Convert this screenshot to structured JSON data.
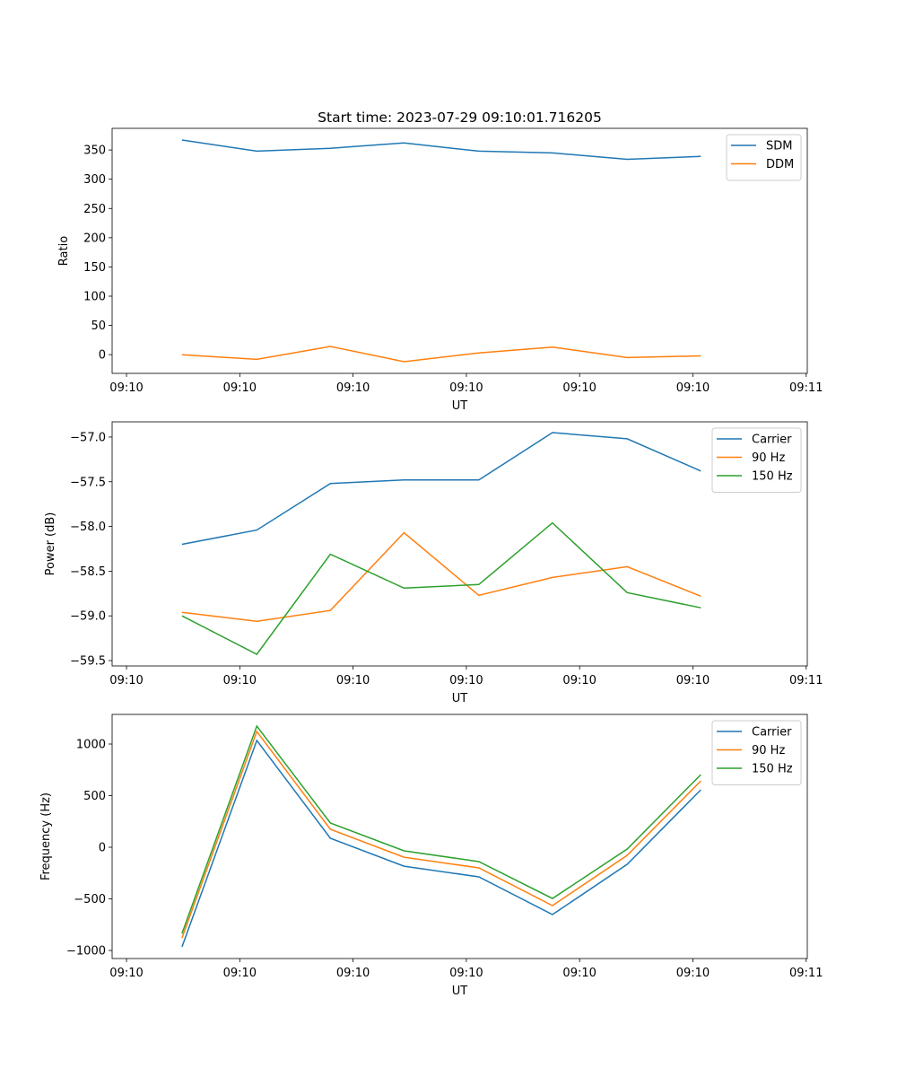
{
  "colors": {
    "blue": "#1f77b4",
    "orange": "#ff7f0e",
    "green": "#2ca02c"
  },
  "chart_data": [
    {
      "type": "line",
      "title": "Start time: 2023-07-29 09:10:01.716205",
      "xlabel": "UT",
      "ylabel": "Ratio",
      "x": [
        4.9,
        11.5,
        18.0,
        24.5,
        31.1,
        37.6,
        44.2,
        50.7
      ],
      "xlim": [
        -1.27,
        60.1
      ],
      "xticks": [
        0,
        10,
        20,
        30,
        40,
        50,
        60
      ],
      "xtick_labels": [
        "09:10",
        "09:10",
        "09:10",
        "09:10",
        "09:10",
        "09:10",
        "09:11"
      ],
      "ylim": [
        -32,
        387
      ],
      "yticks": [
        0,
        50,
        100,
        150,
        200,
        250,
        300,
        350
      ],
      "ytick_labels": [
        "0",
        "50",
        "100",
        "150",
        "200",
        "250",
        "300",
        "350"
      ],
      "legend": "top-right",
      "series": [
        {
          "name": "SDM",
          "color": "#1f77b4",
          "values": [
            367,
            348,
            353,
            362,
            348,
            345,
            334,
            339
          ]
        },
        {
          "name": "DDM",
          "color": "#ff7f0e",
          "values": [
            0,
            -8,
            14,
            -12,
            3,
            13,
            -5,
            -2
          ]
        }
      ]
    },
    {
      "type": "line",
      "title": "",
      "xlabel": "UT",
      "ylabel": "Power (dB)",
      "x": [
        4.9,
        11.5,
        18.0,
        24.5,
        31.1,
        37.6,
        44.2,
        50.7
      ],
      "xlim": [
        -1.27,
        60.1
      ],
      "xticks": [
        0,
        10,
        20,
        30,
        40,
        50,
        60
      ],
      "xtick_labels": [
        "09:10",
        "09:10",
        "09:10",
        "09:10",
        "09:10",
        "09:10",
        "09:11"
      ],
      "ylim": [
        -59.56,
        -56.83
      ],
      "yticks": [
        -59.5,
        -59.0,
        -58.5,
        -58.0,
        -57.5,
        -57.0
      ],
      "ytick_labels": [
        "−59.5",
        "−59.0",
        "−58.5",
        "−58.0",
        "−57.5",
        "−57.0"
      ],
      "legend": "top-right",
      "series": [
        {
          "name": "Carrier",
          "color": "#1f77b4",
          "values": [
            -58.2,
            -58.04,
            -57.52,
            -57.48,
            -57.48,
            -56.95,
            -57.02,
            -57.38
          ]
        },
        {
          "name": "90 Hz",
          "color": "#ff7f0e",
          "values": [
            -58.96,
            -59.06,
            -58.94,
            -58.07,
            -58.77,
            -58.57,
            -58.45,
            -58.78
          ]
        },
        {
          "name": "150 Hz",
          "color": "#2ca02c",
          "values": [
            -59.0,
            -59.43,
            -58.31,
            -58.69,
            -58.65,
            -57.96,
            -58.74,
            -58.91
          ]
        }
      ]
    },
    {
      "type": "line",
      "title": "",
      "xlabel": "UT",
      "ylabel": "Frequency (Hz)",
      "x": [
        4.9,
        11.5,
        18.0,
        24.5,
        31.1,
        37.6,
        44.2,
        50.7
      ],
      "xlim": [
        -1.27,
        60.1
      ],
      "xticks": [
        0,
        10,
        20,
        30,
        40,
        50,
        60
      ],
      "xtick_labels": [
        "09:10",
        "09:10",
        "09:10",
        "09:10",
        "09:10",
        "09:10",
        "09:11"
      ],
      "ylim": [
        -1078,
        1287
      ],
      "yticks": [
        -1000,
        -500,
        0,
        500,
        1000
      ],
      "ytick_labels": [
        "−1000",
        "−500",
        "0",
        "500",
        "1000"
      ],
      "legend": "top-right",
      "series": [
        {
          "name": "Carrier",
          "color": "#1f77b4",
          "values": [
            -965,
            1035,
            87,
            -183,
            -287,
            -652,
            -165,
            557
          ]
        },
        {
          "name": "90 Hz",
          "color": "#ff7f0e",
          "values": [
            -878,
            1122,
            174,
            -96,
            -200,
            -565,
            -78,
            643
          ]
        },
        {
          "name": "150 Hz",
          "color": "#2ca02c",
          "values": [
            -835,
            1174,
            235,
            -35,
            -139,
            -496,
            -17,
            704
          ]
        }
      ]
    }
  ]
}
